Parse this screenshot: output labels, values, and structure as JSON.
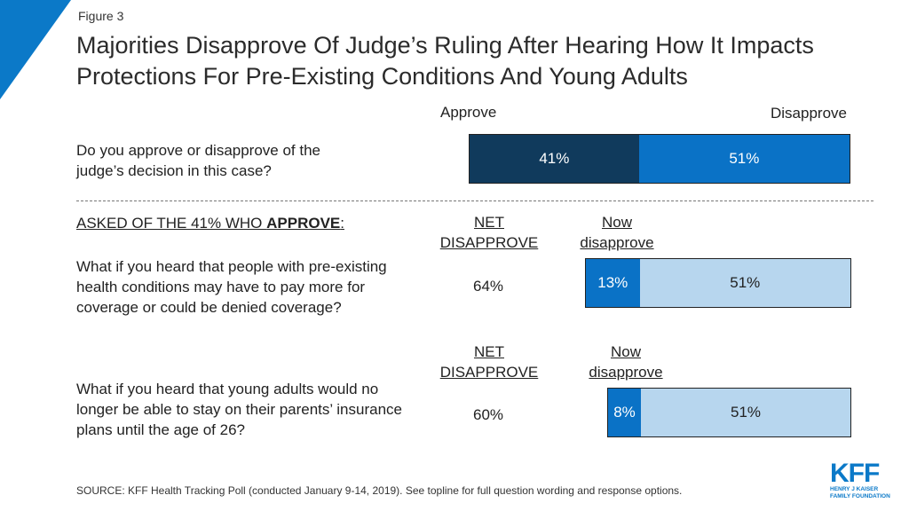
{
  "figure_label": "Figure 3",
  "title": "Majorities Disapprove Of Judge’s Ruling After Hearing How It Impacts Protections For Pre-Existing Conditions And Young Adults",
  "colors": {
    "approve": "#103a5c",
    "disapprove": "#0a72c6",
    "net_disapprove_light": "#b7d6ee",
    "accent": "#0b79c8"
  },
  "chart_data": {
    "type": "bar",
    "orientation": "horizontal",
    "stacked": true,
    "header_labels": {
      "approve": "Approve",
      "disapprove": "Disapprove"
    },
    "main": {
      "question": "Do you approve or disapprove of the judge’s decision in this case?",
      "segments": [
        {
          "name": "Approve",
          "value": 41,
          "label": "41%"
        },
        {
          "name": "Disapprove",
          "value": 51,
          "label": "51%"
        }
      ]
    },
    "followup_intro": {
      "prefix": "ASKED OF THE 41% WHO ",
      "emphasis": "APPROVE",
      "suffix": ":"
    },
    "followups": [
      {
        "net_header_line1": "NET",
        "net_header_line2": "DISAPPROVE",
        "now_header_line1": "Now",
        "now_header_line2": "disapprove",
        "question": "What if you heard that people with pre-existing health conditions may have to pay more for coverage or could be denied coverage?",
        "net_disapprove": "64%",
        "segments": [
          {
            "name": "Now disapprove",
            "value": 13,
            "label": "13%"
          },
          {
            "name": "Disapprove",
            "value": 51,
            "label": "51%"
          }
        ]
      },
      {
        "net_header_line1": "NET",
        "net_header_line2": "DISAPPROVE",
        "now_header_line1": "Now",
        "now_header_line2": "disapprove",
        "question": "What if you heard that young adults would no longer be able to stay on their parents’ insurance plans until the age of 26?",
        "net_disapprove": "60%",
        "segments": [
          {
            "name": "Now disapprove",
            "value": 8,
            "label": "8%"
          },
          {
            "name": "Disapprove",
            "value": 51,
            "label": "51%"
          }
        ]
      }
    ]
  },
  "source": "SOURCE: KFF Health Tracking Poll (conducted January 9-14, 2019). See topline for full question wording and response options.",
  "logo": {
    "main": "KFF",
    "line1": "HENRY J KAISER",
    "line2": "FAMILY FOUNDATION"
  }
}
